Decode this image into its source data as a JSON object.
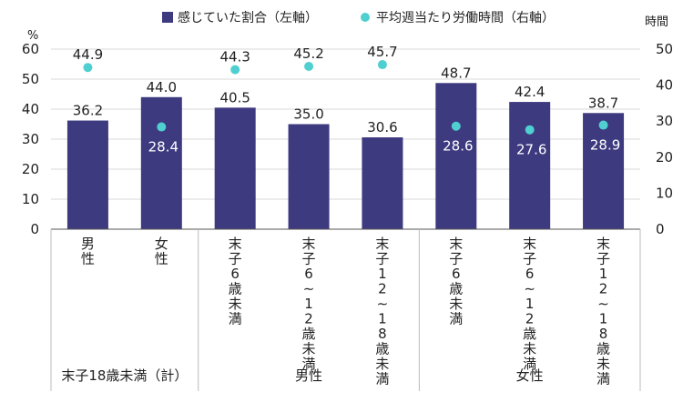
{
  "chart_data": {
    "type": "bar+scatter",
    "legend": {
      "placement": "top-center",
      "bar_label": "感じていた割合（左軸）",
      "dot_label": "平均週当たり労働時間（右軸）"
    },
    "y_left": {
      "unit": "%",
      "ylim": [
        0,
        60
      ],
      "ticks": [
        "0",
        "10",
        "20",
        "30",
        "40",
        "50",
        "60"
      ]
    },
    "y_right": {
      "unit": "時間",
      "ylim": [
        0,
        50
      ],
      "ticks": [
        "0",
        "10",
        "20",
        "30",
        "40",
        "50"
      ]
    },
    "categories": [
      {
        "label": "男性"
      },
      {
        "label": "女性"
      },
      {
        "label": "末子6歳未満"
      },
      {
        "label": "末子6～12歳未満"
      },
      {
        "label": "末子12～18歳未満"
      },
      {
        "label": "末子6歳未満"
      },
      {
        "label": "末子6～12歳未満"
      },
      {
        "label": "末子12～18歳未満"
      }
    ],
    "groups": [
      {
        "label": "末子18歳未満（計）",
        "start": 0,
        "end": 1
      },
      {
        "label": "男性",
        "start": 2,
        "end": 4
      },
      {
        "label": "女性",
        "start": 5,
        "end": 7
      }
    ],
    "series": [
      {
        "name": "感じていた割合（左軸）",
        "axis": "left",
        "values": [
          36.2,
          44.0,
          40.5,
          35.0,
          30.6,
          48.7,
          42.4,
          38.7
        ],
        "labels": [
          "36.2",
          "44.0",
          "40.5",
          "35.0",
          "30.6",
          "48.7",
          "42.4",
          "38.7"
        ]
      },
      {
        "name": "平均週当たり労働時間（右軸）",
        "axis": "right",
        "values": [
          44.9,
          28.4,
          44.3,
          45.2,
          45.7,
          28.6,
          27.6,
          28.9
        ],
        "labels": [
          "44.9",
          "28.4",
          "44.3",
          "45.2",
          "45.7",
          "28.6",
          "27.6",
          "28.9"
        ]
      }
    ],
    "colors": {
      "bar": "#3e3a80",
      "dot": "#4fcfd0",
      "grid": "#d9d9d9"
    },
    "grid": true
  }
}
